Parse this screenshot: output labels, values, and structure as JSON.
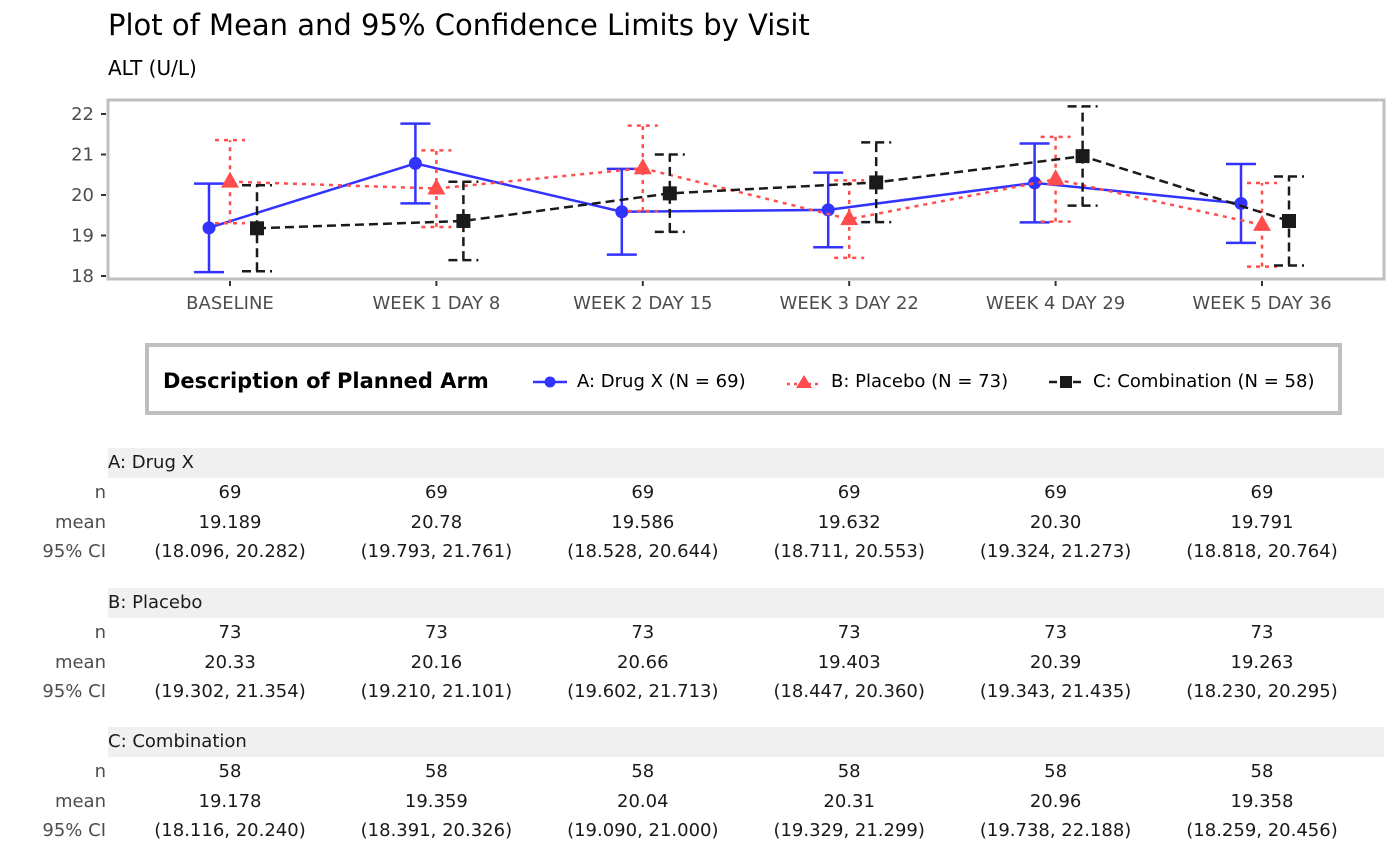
{
  "title": "Plot of Mean and 95% Confidence Limits by Visit",
  "subtitle": "ALT (U/L)",
  "chart_data": {
    "type": "line",
    "title": "Plot of Mean and 95% Confidence Limits by Visit",
    "subtitle": "ALT (U/L)",
    "xlabel": "",
    "ylabel": "",
    "ylim": [
      17.9,
      22.3
    ],
    "yticks": [
      18,
      19,
      20,
      21,
      22
    ],
    "grid": false,
    "categories": [
      "BASELINE",
      "WEEK 1 DAY 8",
      "WEEK 2 DAY 15",
      "WEEK 3 DAY 22",
      "WEEK 4 DAY 29",
      "WEEK 5 DAY 36"
    ],
    "legend": {
      "title": "Description of Planned Arm",
      "placement": "bottom"
    },
    "series": [
      {
        "name": "A: Drug X (N = 69)",
        "color": "#3333FF",
        "marker": "circle",
        "linestyle": "solid",
        "values": [
          19.189,
          20.78,
          19.586,
          19.632,
          20.3,
          19.791
        ],
        "lower": [
          18.096,
          19.793,
          18.528,
          18.711,
          19.324,
          18.818
        ],
        "upper": [
          20.282,
          21.761,
          20.644,
          20.553,
          21.273,
          20.764
        ]
      },
      {
        "name": "B: Placebo (N = 73)",
        "color": "#FF4D4D",
        "marker": "triangle",
        "linestyle": "dotted",
        "values": [
          20.33,
          20.16,
          20.66,
          19.403,
          20.39,
          19.263
        ],
        "lower": [
          19.302,
          19.21,
          19.602,
          18.447,
          19.343,
          18.23
        ],
        "upper": [
          21.354,
          21.101,
          21.713,
          20.36,
          21.435,
          20.295
        ]
      },
      {
        "name": "C: Combination (N = 58)",
        "color": "#1A1A1A",
        "marker": "square",
        "linestyle": "dashed",
        "values": [
          19.178,
          19.359,
          20.04,
          20.31,
          20.96,
          19.358
        ],
        "lower": [
          18.116,
          18.391,
          19.09,
          19.329,
          19.738,
          18.259
        ],
        "upper": [
          20.24,
          20.326,
          21.0,
          21.299,
          22.188,
          20.456
        ]
      }
    ]
  },
  "table": {
    "row_labels": {
      "n": "n",
      "mean": "mean",
      "ci": "95% CI"
    },
    "groups": [
      {
        "name": "A: Drug X",
        "n": [
          "69",
          "69",
          "69",
          "69",
          "69",
          "69"
        ],
        "mean": [
          "19.189",
          "20.78",
          "19.586",
          "19.632",
          "20.30",
          "19.791"
        ],
        "ci": [
          "(18.096, 20.282)",
          "(19.793, 21.761)",
          "(18.528, 20.644)",
          "(18.711, 20.553)",
          "(19.324, 21.273)",
          "(18.818, 20.764)"
        ]
      },
      {
        "name": "B: Placebo",
        "n": [
          "73",
          "73",
          "73",
          "73",
          "73",
          "73"
        ],
        "mean": [
          "20.33",
          "20.16",
          "20.66",
          "19.403",
          "20.39",
          "19.263"
        ],
        "ci": [
          "(19.302, 21.354)",
          "(19.210, 21.101)",
          "(19.602, 21.713)",
          "(18.447, 20.360)",
          "(19.343, 21.435)",
          "(18.230, 20.295)"
        ]
      },
      {
        "name": "C: Combination",
        "n": [
          "58",
          "58",
          "58",
          "58",
          "58",
          "58"
        ],
        "mean": [
          "19.178",
          "19.359",
          "20.04",
          "20.31",
          "20.96",
          "19.358"
        ],
        "ci": [
          "(18.116, 20.240)",
          "(18.391, 20.326)",
          "(19.090, 21.000)",
          "(19.329, 21.299)",
          "(19.738, 22.188)",
          "(18.259, 20.456)"
        ]
      }
    ]
  }
}
